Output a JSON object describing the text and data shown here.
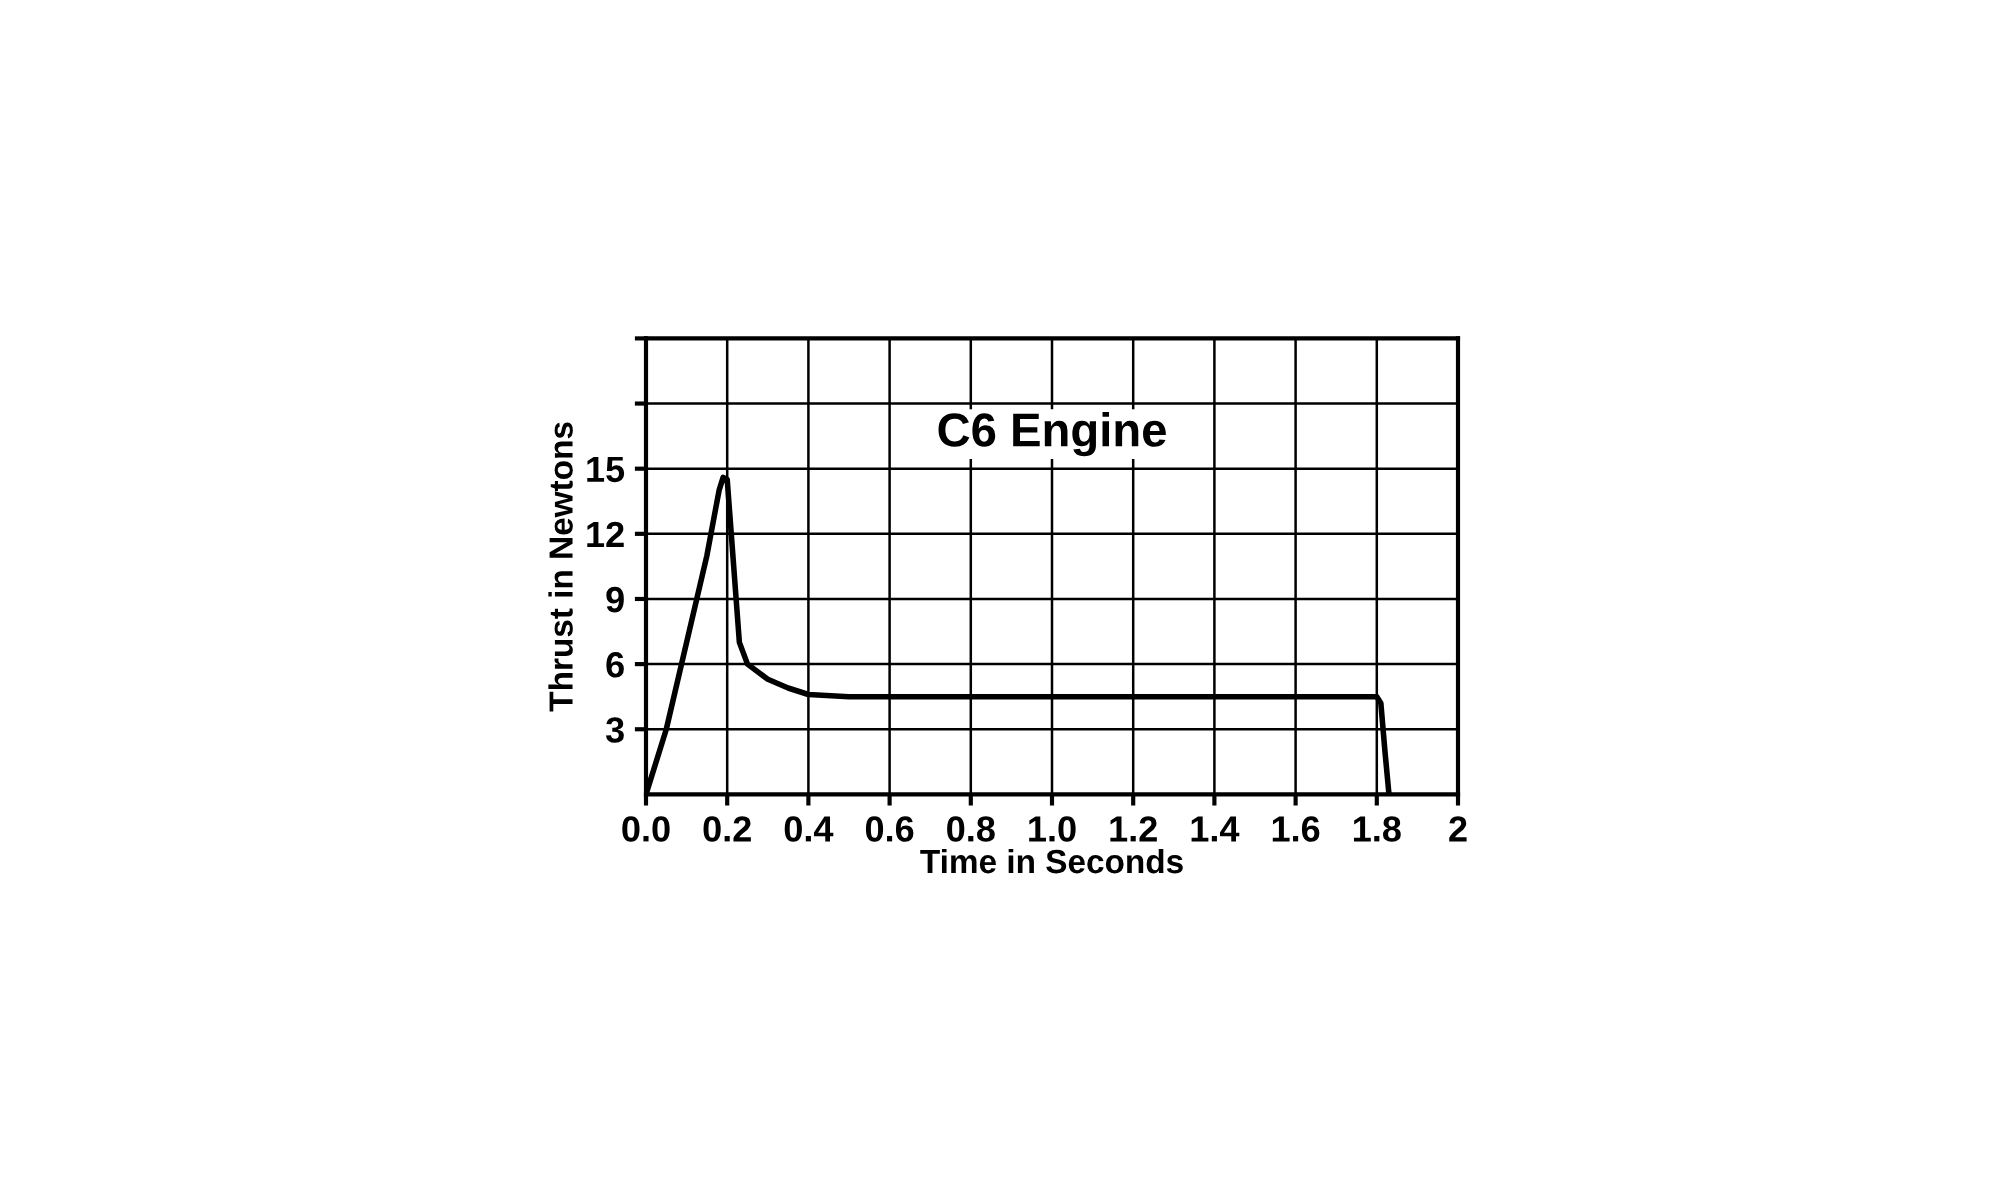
{
  "chart_data": {
    "type": "line",
    "title": "C6 Engine",
    "xlabel": "Time in Seconds",
    "ylabel": "Thrust in Newtons",
    "x": [
      0,
      0.05,
      0.1,
      0.15,
      0.18,
      0.19,
      0.2,
      0.21,
      0.23,
      0.25,
      0.3,
      0.35,
      0.4,
      0.5,
      1.0,
      1.5,
      1.8,
      1.81,
      1.82,
      1.83
    ],
    "series": [
      {
        "color": "#000000",
        "values": [
          0,
          3,
          7,
          11,
          14,
          14.6,
          14.5,
          12,
          7,
          6,
          5.3,
          4.9,
          4.6,
          4.5,
          4.5,
          4.5,
          4.5,
          4.2,
          2,
          0
        ]
      }
    ],
    "xlim": [
      0,
      2
    ],
    "ylim": [
      0,
      21
    ],
    "xticks": [
      {
        "value": 0,
        "label": "0.0"
      },
      0.2,
      0.4,
      0.6,
      0.8,
      {
        "value": 1,
        "label": "1.0"
      },
      1.2,
      1.4,
      1.6,
      1.8,
      2
    ],
    "yticks": [
      3,
      6,
      9,
      12,
      15,
      {
        "value": 18,
        "label": null
      },
      {
        "value": 21,
        "label": null
      }
    ],
    "grid": true,
    "marker": "none",
    "line_style": "solid"
  }
}
